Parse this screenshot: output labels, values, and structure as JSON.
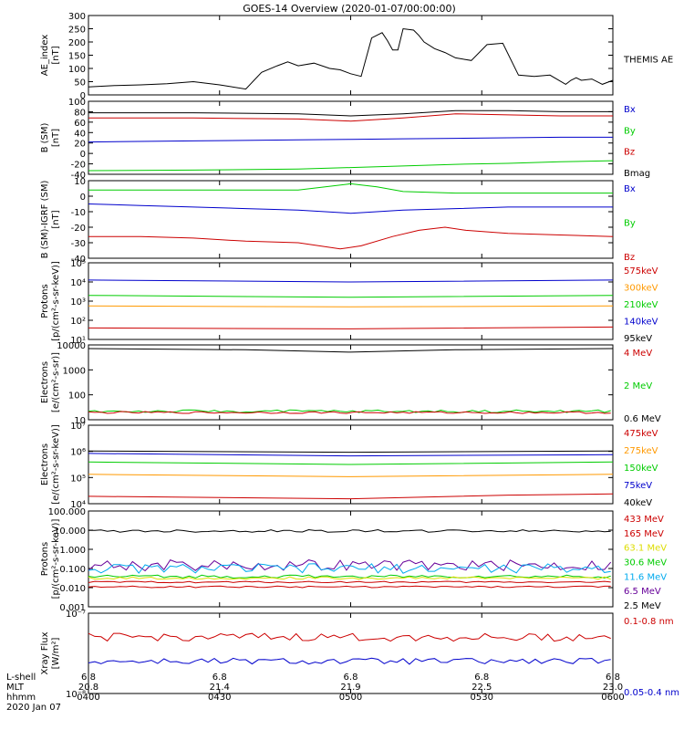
{
  "title": "GOES-14 Overview (2020-01-07/00:00:00)",
  "colors": {
    "black": "#000000",
    "red": "#cc0000",
    "green": "#00cc00",
    "blue": "#0000cc",
    "orange": "#ff9900",
    "cyan": "#00aaee",
    "purple": "#660099",
    "yellow": "#dddd00"
  },
  "footer": {
    "row_labels": [
      "L-shell",
      "MLT",
      "hhmm",
      "2020 Jan 07"
    ],
    "ticks": [
      {
        "lshell": "6.8",
        "mlt": "20.8",
        "hhmm": "0400"
      },
      {
        "lshell": "6.8",
        "mlt": "21.4",
        "hhmm": "0430"
      },
      {
        "lshell": "6.8",
        "mlt": "21.9",
        "hhmm": "0500"
      },
      {
        "lshell": "6.8",
        "mlt": "22.5",
        "hhmm": "0530"
      },
      {
        "lshell": "6.8",
        "mlt": "23.0",
        "hhmm": "0600"
      }
    ]
  },
  "chart_data": [
    {
      "type": "line",
      "ylabel": [
        "AE_index",
        "[nT]"
      ],
      "ylim": [
        0,
        300
      ],
      "ticks": [
        "300",
        "250",
        "200",
        "150",
        "100",
        "50",
        "0"
      ],
      "legend": [
        {
          "name": "THEMIS AE",
          "color": "black"
        }
      ],
      "series": [
        {
          "name": "THEMIS AE",
          "color": "black",
          "t": [
            0,
            5,
            10,
            15,
            20,
            25,
            30,
            33,
            36,
            38,
            40,
            43,
            46,
            48,
            50,
            52,
            54,
            56,
            57,
            58,
            59,
            60,
            62,
            63,
            64,
            66,
            68,
            70,
            73,
            76,
            79,
            82,
            85,
            88,
            91,
            92,
            93,
            94,
            96,
            98,
            100
          ],
          "y": [
            30,
            35,
            38,
            42,
            50,
            38,
            22,
            85,
            110,
            125,
            110,
            120,
            100,
            95,
            80,
            70,
            215,
            235,
            205,
            170,
            170,
            250,
            245,
            225,
            200,
            175,
            160,
            140,
            130,
            190,
            195,
            75,
            70,
            75,
            40,
            55,
            65,
            55,
            60,
            40,
            55
          ]
        }
      ]
    },
    {
      "type": "line",
      "ylabel": [
        "B (SM)",
        "[nT]"
      ],
      "ylim": [
        -40,
        100
      ],
      "ticks": [
        "100",
        "80",
        "60",
        "40",
        "20",
        "0",
        "-20",
        "-40"
      ],
      "legend": [
        {
          "name": "Bx",
          "color": "blue"
        },
        {
          "name": "By",
          "color": "green"
        },
        {
          "name": "Bz",
          "color": "red"
        },
        {
          "name": "Bmag",
          "color": "black"
        }
      ],
      "series": [
        {
          "name": "Bmag",
          "color": "black",
          "t": [
            0,
            20,
            40,
            50,
            60,
            70,
            80,
            90,
            100
          ],
          "y": [
            78,
            78,
            76,
            72,
            76,
            82,
            82,
            80,
            80
          ]
        },
        {
          "name": "Bz",
          "color": "red",
          "t": [
            0,
            20,
            40,
            50,
            60,
            70,
            80,
            90,
            100
          ],
          "y": [
            68,
            68,
            66,
            62,
            68,
            76,
            74,
            72,
            72
          ]
        },
        {
          "name": "Bx",
          "color": "blue",
          "t": [
            0,
            20,
            40,
            50,
            60,
            70,
            80,
            90,
            100
          ],
          "y": [
            22,
            24,
            26,
            27,
            28,
            29,
            30,
            31,
            31
          ]
        },
        {
          "name": "By",
          "color": "green",
          "t": [
            0,
            20,
            40,
            50,
            60,
            70,
            80,
            90,
            100
          ],
          "y": [
            -33,
            -32,
            -30,
            -27,
            -24,
            -21,
            -19,
            -16,
            -14
          ]
        }
      ]
    },
    {
      "type": "line",
      "ylabel": [
        "B (SM)-IGRF (SM)",
        "[nT]"
      ],
      "ylim": [
        -40,
        10
      ],
      "ticks": [
        "10",
        "0",
        "-10",
        "-20",
        "-30",
        "-40"
      ],
      "legend": [
        {
          "name": "Bx",
          "color": "blue"
        },
        {
          "name": "By",
          "color": "green"
        },
        {
          "name": "Bz",
          "color": "red"
        }
      ],
      "series": [
        {
          "name": "By",
          "color": "green",
          "t": [
            0,
            20,
            40,
            50,
            55,
            60,
            70,
            80,
            90,
            100
          ],
          "y": [
            4,
            4,
            4,
            8,
            6,
            3,
            2,
            2,
            2,
            2
          ]
        },
        {
          "name": "Bx",
          "color": "blue",
          "t": [
            0,
            10,
            20,
            30,
            40,
            50,
            60,
            70,
            80,
            90,
            100
          ],
          "y": [
            -5,
            -6,
            -7,
            -8,
            -9,
            -11,
            -9,
            -8,
            -7,
            -7,
            -7
          ]
        },
        {
          "name": "Bz",
          "color": "red",
          "t": [
            0,
            10,
            20,
            30,
            40,
            48,
            52,
            58,
            63,
            68,
            72,
            80,
            90,
            100
          ],
          "y": [
            -26,
            -26,
            -27,
            -29,
            -30,
            -34,
            -32,
            -26,
            -22,
            -20,
            -22,
            -24,
            -25,
            -26
          ]
        }
      ]
    },
    {
      "type": "line",
      "scale": "log",
      "ylabel": [
        "Protons",
        "[p/(cm²-s-sr-keV)]"
      ],
      "ylim": [
        1,
        5
      ],
      "ticks": [
        "10⁵",
        "10⁴",
        "10³",
        "10²",
        "10¹"
      ],
      "legend": [
        {
          "name": "575keV",
          "color": "red"
        },
        {
          "name": "300keV",
          "color": "orange"
        },
        {
          "name": "210keV",
          "color": "green"
        },
        {
          "name": "140keV",
          "color": "blue"
        },
        {
          "name": "95keV",
          "color": "black"
        }
      ],
      "series": [
        {
          "name": "95keV",
          "color": "black",
          "t": [
            0,
            100
          ],
          "y": [
            5,
            5
          ]
        },
        {
          "name": "140keV",
          "color": "blue",
          "t": [
            0,
            50,
            100
          ],
          "y": [
            4.1,
            4.0,
            4.1
          ]
        },
        {
          "name": "210keV",
          "color": "green",
          "t": [
            0,
            50,
            100
          ],
          "y": [
            3.3,
            3.2,
            3.3
          ]
        },
        {
          "name": "300keV",
          "color": "orange",
          "t": [
            0,
            50,
            100
          ],
          "y": [
            2.75,
            2.7,
            2.75
          ]
        },
        {
          "name": "575keV",
          "color": "red",
          "t": [
            0,
            50,
            100
          ],
          "y": [
            1.6,
            1.55,
            1.65
          ]
        }
      ]
    },
    {
      "type": "line",
      "scale": "log",
      "ylabel": [
        "Electrons",
        "[e/(cm²-s-sr)]"
      ],
      "ylim": [
        1,
        4.1
      ],
      "ticks": [
        "10000",
        "1000",
        "100",
        "10"
      ],
      "legend": [
        {
          "name": "4 MeV",
          "color": "red"
        },
        {
          "name": "2 MeV",
          "color": "green"
        },
        {
          "name": "0.6 MeV",
          "color": "black"
        }
      ],
      "series": [
        {
          "name": "0.6 MeV",
          "color": "black",
          "t": [
            0,
            30,
            50,
            70,
            100
          ],
          "y": [
            3.95,
            3.9,
            3.8,
            3.9,
            3.95
          ]
        },
        {
          "name": "2 MeV",
          "color": "green",
          "t": [
            0,
            100
          ],
          "y": [
            1.35,
            1.35
          ],
          "noise": 0.06
        },
        {
          "name": "4 MeV",
          "color": "red",
          "t": [
            0,
            100
          ],
          "y": [
            1.3,
            1.3
          ],
          "noise": 0.04
        }
      ]
    },
    {
      "type": "line",
      "scale": "log",
      "ylabel": [
        "Electrons",
        "[e/(cm²-s-sr-keV)]"
      ],
      "ylim": [
        3.8,
        7
      ],
      "ticks": [
        "10⁷",
        "10⁶",
        "10⁵",
        "10⁴"
      ],
      "legend": [
        {
          "name": "475keV",
          "color": "red"
        },
        {
          "name": "275keV",
          "color": "orange"
        },
        {
          "name": "150keV",
          "color": "green"
        },
        {
          "name": "75keV",
          "color": "blue"
        },
        {
          "name": "40keV",
          "color": "black"
        }
      ],
      "series": [
        {
          "name": "40keV",
          "color": "black",
          "t": [
            0,
            50,
            100
          ],
          "y": [
            5.95,
            5.9,
            5.95
          ]
        },
        {
          "name": "75keV",
          "color": "blue",
          "t": [
            0,
            50,
            100
          ],
          "y": [
            5.85,
            5.75,
            5.8
          ]
        },
        {
          "name": "150keV",
          "color": "green",
          "t": [
            0,
            50,
            100
          ],
          "y": [
            5.5,
            5.4,
            5.5
          ]
        },
        {
          "name": "275keV",
          "color": "orange",
          "t": [
            0,
            50,
            100
          ],
          "y": [
            5.0,
            4.9,
            5.0
          ]
        },
        {
          "name": "475keV",
          "color": "red",
          "t": [
            0,
            50,
            80,
            100
          ],
          "y": [
            4.1,
            4.0,
            4.15,
            4.2
          ]
        }
      ]
    },
    {
      "type": "line",
      "scale": "log",
      "ylabel": [
        "Protons",
        "[p/(cm²-s-sr-keV)]"
      ],
      "ylim": [
        -3.7,
        2.3
      ],
      "ticks": [
        "100.000",
        "10.000",
        "1.000",
        "0.100",
        "0.010",
        "0.001"
      ],
      "legend": [
        {
          "name": "433 MeV",
          "color": "red"
        },
        {
          "name": "165 MeV",
          "color": "red"
        },
        {
          "name": "63.1 MeV",
          "color": "yellow"
        },
        {
          "name": "30.6 MeV",
          "color": "green"
        },
        {
          "name": "11.6 MeV",
          "color": "cyan"
        },
        {
          "name": "6.5 MeV",
          "color": "purple"
        },
        {
          "name": "2.5 MeV",
          "color": "black"
        }
      ],
      "series": [
        {
          "name": "2.5 MeV",
          "color": "black",
          "t": [
            0,
            100
          ],
          "y": [
            1.05,
            1.05
          ],
          "noise": 0.08
        },
        {
          "name": "6.5 MeV",
          "color": "purple",
          "t": [
            0,
            100
          ],
          "y": [
            -1.1,
            -1.1
          ],
          "noise": 0.35
        },
        {
          "name": "11.6 MeV",
          "color": "cyan",
          "t": [
            0,
            100
          ],
          "y": [
            -1.3,
            -1.3
          ],
          "noise": 0.3
        },
        {
          "name": "30.6 MeV",
          "color": "green",
          "t": [
            0,
            100
          ],
          "y": [
            -1.8,
            -1.8
          ],
          "noise": 0.1
        },
        {
          "name": "63.1 MeV",
          "color": "yellow",
          "t": [
            0,
            100
          ],
          "y": [
            -1.9,
            -1.9
          ],
          "noise": 0.08
        },
        {
          "name": "165 MeV",
          "color": "red",
          "t": [
            0,
            100
          ],
          "y": [
            -2.15,
            -2.15
          ],
          "noise": 0.05
        },
        {
          "name": "433 MeV",
          "color": "red",
          "t": [
            0,
            100
          ],
          "y": [
            -2.45,
            -2.45
          ],
          "noise": 0.05
        }
      ]
    },
    {
      "type": "line",
      "scale": "log",
      "ylabel": [
        "Xray Flux",
        "[W/m²]"
      ],
      "ylim": [
        -8,
        -7
      ],
      "ticks": [
        "10⁻⁷",
        "10⁻⁸"
      ],
      "legend": [
        {
          "name": "0.1-0.8 nm",
          "color": "red"
        },
        {
          "name": "0.05-0.4 nm",
          "color": "blue"
        }
      ],
      "series": [
        {
          "name": "0.1-0.8 nm",
          "color": "red",
          "t": [
            0,
            100
          ],
          "y": [
            -7.3,
            -7.3
          ],
          "noise": 0.05
        },
        {
          "name": "0.05-0.4 nm",
          "color": "blue",
          "t": [
            0,
            100
          ],
          "y": [
            -7.6,
            -7.6
          ],
          "noise": 0.04
        }
      ]
    }
  ]
}
